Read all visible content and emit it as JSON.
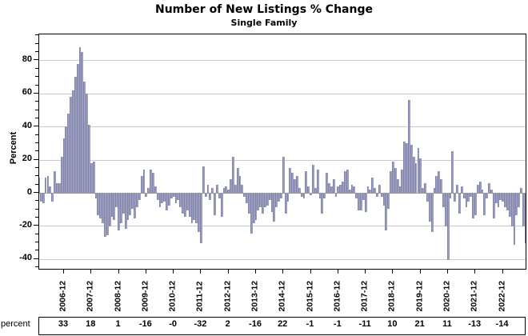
{
  "title": "Number of New Listings % Change",
  "subtitle": "Single Family",
  "y_axis": {
    "label": "Percent",
    "major_ticks": [
      -40,
      -20,
      0,
      20,
      40,
      60,
      80
    ],
    "minor_tick_step": 5,
    "range": [
      -46,
      96
    ]
  },
  "x_axis": {
    "tick_labels": [
      "2006-12",
      "2007-12",
      "2008-12",
      "2009-12",
      "2010-12",
      "2011-12",
      "2012-12",
      "2013-12",
      "2014-12",
      "2015-12",
      "2016-12",
      "2017-12",
      "2018-12",
      "2019-12",
      "2020-12",
      "2021-12",
      "2022-12"
    ]
  },
  "table": {
    "row_label": "percent",
    "values": [
      "33",
      "18",
      "1",
      "-16",
      "-0",
      "-32",
      "2",
      "-16",
      "22",
      "-1",
      "-1",
      "-11",
      "10",
      "21",
      "11",
      "-13",
      "-14"
    ]
  },
  "colors": {
    "bar_fill": "#9a9dbe",
    "bar_edge": "#8184ab",
    "gridline": "#c9c9c9",
    "zero_line": "#9a9a9a",
    "axis": "#000000"
  },
  "chart_data": {
    "type": "bar",
    "title": "Number of New Listings % Change",
    "subtitle": "Single Family",
    "xlabel": "",
    "ylabel": "Percent",
    "ylim": [
      -46,
      96
    ],
    "grid": "horizontal-major",
    "legend": "none",
    "x_start": "2006-01",
    "x_frequency": "monthly",
    "x_major_ticks_every": "December",
    "values": [
      9,
      -5,
      -6,
      9,
      10,
      4,
      -5,
      13,
      6,
      6,
      22,
      33,
      40,
      48,
      58,
      62,
      70,
      78,
      88,
      85,
      67,
      60,
      41,
      18,
      19,
      -3,
      -13,
      -15,
      -18,
      -26,
      -25,
      -20,
      -14,
      -16,
      -8,
      -22,
      -18,
      -12,
      -21,
      -16,
      -13,
      -9,
      -15,
      -8,
      -4,
      10,
      14,
      -2,
      3,
      14,
      12,
      4,
      -4,
      -8,
      -6,
      -5,
      -10,
      -7,
      -3,
      -2,
      -6,
      -4,
      -8,
      -12,
      -14,
      -10,
      -14,
      -18,
      -16,
      -18,
      -23,
      -30,
      16,
      -2,
      5,
      -4,
      3,
      -13,
      5,
      -3,
      -14,
      3,
      4,
      2,
      8,
      22,
      5,
      15,
      10,
      5,
      -2,
      -6,
      -12,
      -24,
      -18,
      -16,
      -10,
      -8,
      -12,
      -8,
      -7,
      -4,
      -11,
      -17,
      -8,
      -5,
      -3,
      22,
      -12,
      -5,
      15,
      12,
      8,
      10,
      3,
      -2,
      -3,
      13,
      4,
      -1,
      17,
      3,
      14,
      -3,
      -12,
      -3,
      12,
      6,
      4,
      8,
      -2,
      4,
      5,
      7,
      13,
      14,
      2,
      5,
      4,
      -3,
      -10,
      -10,
      -4,
      -11,
      4,
      2,
      9,
      3,
      -2,
      5,
      -2,
      -7,
      -22,
      -9,
      13,
      19,
      15,
      8,
      4,
      14,
      31,
      30,
      56,
      29,
      22,
      18,
      27,
      21,
      3,
      6,
      -5,
      -17,
      -23,
      3,
      10,
      13,
      8,
      -8,
      -20,
      -40,
      -3,
      25,
      -5,
      5,
      -12,
      4,
      -3,
      -8,
      -5,
      -2,
      -15,
      -13,
      5,
      7,
      2,
      -13,
      -3,
      6,
      2,
      -15,
      -6,
      -8,
      -4,
      -5,
      -8,
      -10,
      -14,
      -20,
      -31,
      -13,
      -8,
      3,
      -20,
      -30,
      -41
    ],
    "annual_table_row": {
      "label": "percent",
      "categories": [
        "2006-12",
        "2007-12",
        "2008-12",
        "2009-12",
        "2010-12",
        "2011-12",
        "2012-12",
        "2013-12",
        "2014-12",
        "2015-12",
        "2016-12",
        "2017-12",
        "2018-12",
        "2019-12",
        "2020-12",
        "2021-12",
        "2022-12"
      ],
      "values": [
        33,
        18,
        1,
        -16,
        0,
        -32,
        2,
        -16,
        22,
        -1,
        -1,
        -11,
        10,
        21,
        11,
        -13,
        -14
      ]
    }
  }
}
